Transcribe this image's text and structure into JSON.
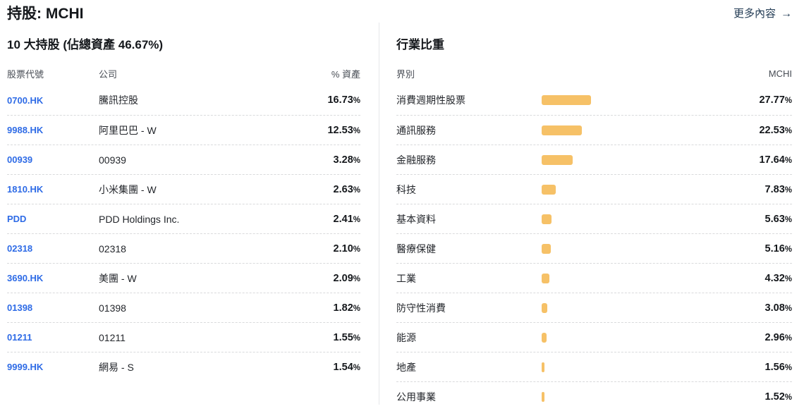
{
  "page": {
    "title": "持股: MCHI",
    "more_link": "更多內容",
    "more_arrow": "→",
    "accent_blue": "#2E6BE6",
    "bar_color": "#F6C167",
    "link_color": "#223B54"
  },
  "holdings": {
    "title": "10 大持股 (佔總資產 46.67%)",
    "columns": {
      "ticker": "股票代號",
      "company": "公司",
      "weight": "% 資產"
    },
    "rows": [
      {
        "ticker": "0700.HK",
        "company": "騰訊控股",
        "weight": "16.73%"
      },
      {
        "ticker": "9988.HK",
        "company": "阿里巴巴 - W",
        "weight": "12.53%"
      },
      {
        "ticker": "00939",
        "company": "00939",
        "weight": "3.28%"
      },
      {
        "ticker": "1810.HK",
        "company": "小米集團 - W",
        "weight": "2.63%"
      },
      {
        "ticker": "PDD",
        "company": "PDD Holdings Inc.",
        "weight": "2.41%"
      },
      {
        "ticker": "02318",
        "company": "02318",
        "weight": "2.10%"
      },
      {
        "ticker": "3690.HK",
        "company": "美團 - W",
        "weight": "2.09%"
      },
      {
        "ticker": "01398",
        "company": "01398",
        "weight": "1.82%"
      },
      {
        "ticker": "01211",
        "company": "01211",
        "weight": "1.55%"
      },
      {
        "ticker": "9999.HK",
        "company": "網易 - S",
        "weight": "1.54%"
      }
    ]
  },
  "sectors": {
    "title": "行業比重",
    "columns": {
      "sector": "界別",
      "fund": "MCHI"
    },
    "rows": [
      {
        "sector": "消費週期性股票",
        "value": 27.77,
        "weight": "27.77%"
      },
      {
        "sector": "通訊服務",
        "value": 22.53,
        "weight": "22.53%"
      },
      {
        "sector": "金融服務",
        "value": 17.64,
        "weight": "17.64%"
      },
      {
        "sector": "科技",
        "value": 7.83,
        "weight": "7.83%"
      },
      {
        "sector": "基本資料",
        "value": 5.63,
        "weight": "5.63%"
      },
      {
        "sector": "醫療保健",
        "value": 5.16,
        "weight": "5.16%"
      },
      {
        "sector": "工業",
        "value": 4.32,
        "weight": "4.32%"
      },
      {
        "sector": "防守性消費",
        "value": 3.08,
        "weight": "3.08%"
      },
      {
        "sector": "能源",
        "value": 2.96,
        "weight": "2.96%"
      },
      {
        "sector": "地產",
        "value": 1.56,
        "weight": "1.56%"
      },
      {
        "sector": "公用事業",
        "value": 1.52,
        "weight": "1.52%"
      }
    ]
  },
  "chart_data": {
    "type": "bar",
    "title": "行業比重 (MCHI)",
    "categories": [
      "消費週期性股票",
      "通訊服務",
      "金融服務",
      "科技",
      "基本資料",
      "醫療保健",
      "工業",
      "防守性消費",
      "能源",
      "地產",
      "公用事業"
    ],
    "values": [
      27.77,
      22.53,
      17.64,
      7.83,
      5.63,
      5.16,
      4.32,
      3.08,
      2.96,
      1.56,
      1.52
    ],
    "xlabel": "界別",
    "ylabel": "% 資產",
    "xlim": [
      0,
      30
    ],
    "legend": false,
    "orientation": "horizontal"
  }
}
